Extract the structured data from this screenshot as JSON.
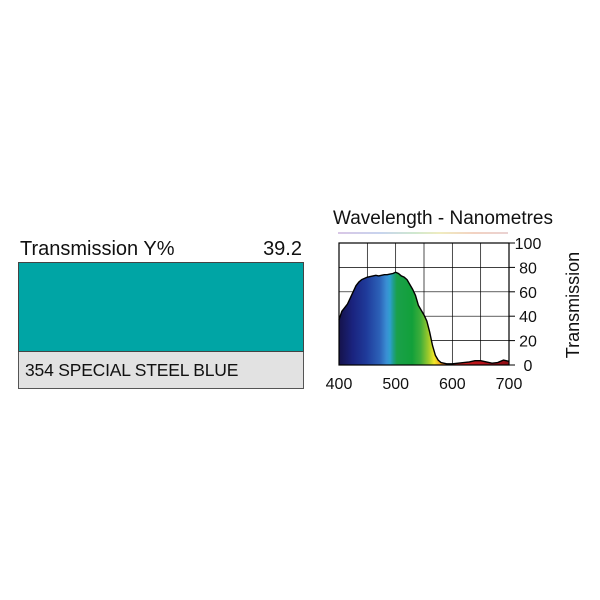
{
  "filter": {
    "transmission_label": "Transmission Y%",
    "transmission_value": "39.2",
    "name": "354 SPECIAL STEEL BLUE",
    "swatch_color": "#00a5a5"
  },
  "chart_data": {
    "type": "area",
    "title": "Wavelength - Nanometres",
    "xlabel": "",
    "ylabel": "Transmission",
    "xlim": [
      400,
      700
    ],
    "ylim": [
      0,
      100
    ],
    "xticks": [
      "400",
      "500",
      "600",
      "700"
    ],
    "yticks": [
      "0",
      "20",
      "40",
      "60",
      "80",
      "100"
    ],
    "grid": true,
    "fill": "visible-spectrum",
    "series": [
      {
        "x": [
          400,
          405,
          410,
          415,
          420,
          425,
          430,
          435,
          440,
          445,
          450,
          455,
          460,
          465,
          470,
          475,
          480,
          485,
          490,
          495,
          500,
          505,
          510,
          515,
          520,
          525,
          530,
          535,
          540,
          545,
          550,
          555,
          560,
          565,
          570,
          575,
          580,
          590,
          600,
          610,
          620,
          630,
          640,
          650,
          660,
          670,
          680,
          690,
          700
        ],
        "y": [
          37,
          44,
          47,
          50,
          55,
          60,
          65,
          68,
          70,
          71,
          72,
          72.5,
          73,
          73.5,
          73,
          73.5,
          74,
          74,
          74.5,
          75,
          76,
          75,
          73,
          72,
          70,
          66,
          62,
          57,
          49,
          45,
          41,
          36,
          27,
          16,
          8,
          4,
          2,
          1,
          1,
          1.5,
          2,
          2.5,
          3.5,
          3.5,
          2.5,
          1.5,
          2,
          4,
          3
        ]
      }
    ]
  }
}
